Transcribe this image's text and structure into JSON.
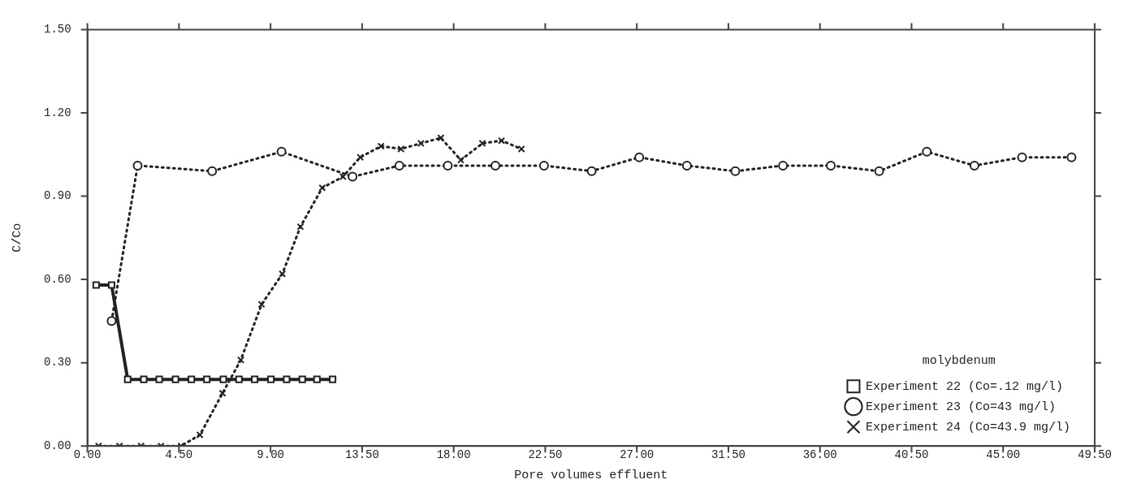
{
  "chart_data": {
    "type": "line",
    "xlabel": "Pore volumes effluent",
    "ylabel": "C/Co",
    "legend_title": "molybdenum",
    "xlim": [
      0,
      49.5
    ],
    "ylim": [
      0,
      1.5
    ],
    "xticks": [
      {
        "value": 0,
        "label": "0.00"
      },
      {
        "value": 4.5,
        "label": "4.50"
      },
      {
        "value": 9,
        "label": "9.00"
      },
      {
        "value": 13.5,
        "label": "13.50"
      },
      {
        "value": 18,
        "label": "18.00"
      },
      {
        "value": 22.5,
        "label": "22.50"
      },
      {
        "value": 27,
        "label": "27.00"
      },
      {
        "value": 31.5,
        "label": "31.50"
      },
      {
        "value": 36,
        "label": "36.00"
      },
      {
        "value": 40.5,
        "label": "40.50"
      },
      {
        "value": 45,
        "label": "45.00"
      },
      {
        "value": 49.5,
        "label": "49.50"
      }
    ],
    "yticks": [
      {
        "value": 0,
        "label": "0.00"
      },
      {
        "value": 0.3,
        "label": "0.30"
      },
      {
        "value": 0.6,
        "label": "0.60"
      },
      {
        "value": 0.9,
        "label": "0.90"
      },
      {
        "value": 1.2,
        "label": "1.20"
      },
      {
        "value": 1.5,
        "label": "1.50"
      }
    ],
    "grid": false,
    "legend": "bottom right",
    "series": [
      {
        "name": "Experiment 22 (Co=.12 mg/l)",
        "color": "#222222",
        "marker": "square",
        "line_style": "solid",
        "x": [
          0.43,
          1.19,
          1.98,
          2.77,
          3.53,
          4.33,
          5.11,
          5.87,
          6.68,
          7.45,
          8.22,
          9.02,
          9.79,
          10.56,
          11.28,
          12.05
        ],
        "values": [
          0.58,
          0.58,
          0.24,
          0.24,
          0.24,
          0.24,
          0.24,
          0.24,
          0.24,
          0.24,
          0.24,
          0.24,
          0.24,
          0.24,
          0.24,
          0.24
        ]
      },
      {
        "name": "Experiment 23 (Co=43 mg/l)",
        "color": "#222222",
        "marker": "circle",
        "line_style": "dotted",
        "x": [
          1.19,
          2.47,
          6.13,
          9.54,
          13.03,
          15.33,
          17.71,
          20.05,
          22.44,
          24.78,
          27.12,
          29.46,
          31.84,
          34.18,
          36.53,
          38.91,
          41.25,
          43.59,
          45.93,
          48.36
        ],
        "values": [
          0.45,
          1.01,
          0.99,
          1.06,
          0.97,
          1.01,
          1.01,
          1.01,
          1.01,
          0.99,
          1.04,
          1.01,
          0.99,
          1.01,
          1.01,
          0.99,
          1.06,
          1.01,
          1.04,
          1.04
        ]
      },
      {
        "name": "Experiment 24 (Co=43.9 mg/l)",
        "color": "#222222",
        "marker": "cross",
        "line_style": "dotted",
        "x": [
          0.55,
          1.58,
          2.64,
          3.62,
          4.6,
          5.53,
          6.64,
          7.54,
          8.56,
          9.58,
          10.47,
          11.54,
          12.56,
          13.41,
          14.43,
          15.41,
          16.39,
          17.37,
          18.35,
          19.41,
          20.35,
          21.33
        ],
        "values": [
          0,
          0,
          0,
          0,
          0,
          0.04,
          0.19,
          0.31,
          0.51,
          0.62,
          0.79,
          0.93,
          0.97,
          1.04,
          1.08,
          1.07,
          1.09,
          1.11,
          1.03,
          1.09,
          1.1,
          1.07
        ]
      }
    ]
  }
}
